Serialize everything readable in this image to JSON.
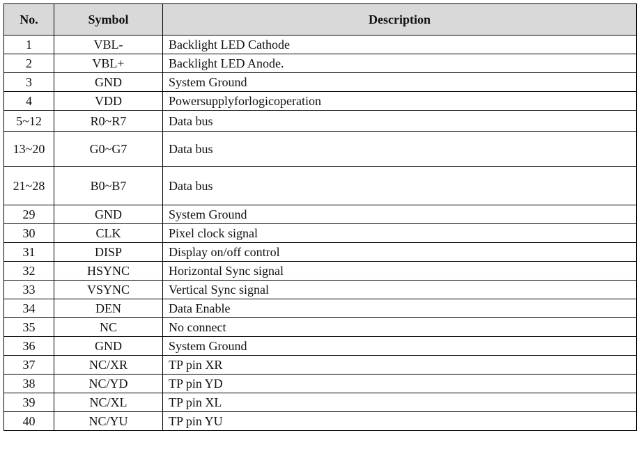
{
  "table": {
    "header": [
      "No.",
      "Symbol",
      "Description"
    ],
    "rows": [
      [
        "1",
        "VBL-",
        "Backlight LED Cathode"
      ],
      [
        "2",
        "VBL+",
        "Backlight LED Anode."
      ],
      [
        "3",
        "GND",
        "System Ground"
      ],
      [
        "4",
        "VDD",
        "Powersupplyforlogicoperation"
      ],
      [
        "5~12",
        "R0~R7",
        "Data bus"
      ],
      [
        "13~20",
        "G0~G7",
        "Data bus"
      ],
      [
        "21~28",
        "B0~B7",
        "Data bus"
      ],
      [
        "29",
        "GND",
        "System Ground"
      ],
      [
        "30",
        "CLK",
        "Pixel clock signal"
      ],
      [
        "31",
        "DISP",
        "Display on/off control"
      ],
      [
        "32",
        "HSYNC",
        "Horizontal Sync signal"
      ],
      [
        "33",
        "VSYNC",
        "Vertical Sync signal"
      ],
      [
        "34",
        "DEN",
        "Data Enable"
      ],
      [
        "35",
        "NC",
        "No connect"
      ],
      [
        "36",
        "GND",
        "System Ground"
      ],
      [
        "37",
        "NC/XR",
        "TP pin XR"
      ],
      [
        "38",
        "NC/YD",
        "TP pin YD"
      ],
      [
        "39",
        "NC/XL",
        "TP pin XL"
      ],
      [
        "40",
        "NC/YU",
        "TP pin YU"
      ]
    ]
  }
}
